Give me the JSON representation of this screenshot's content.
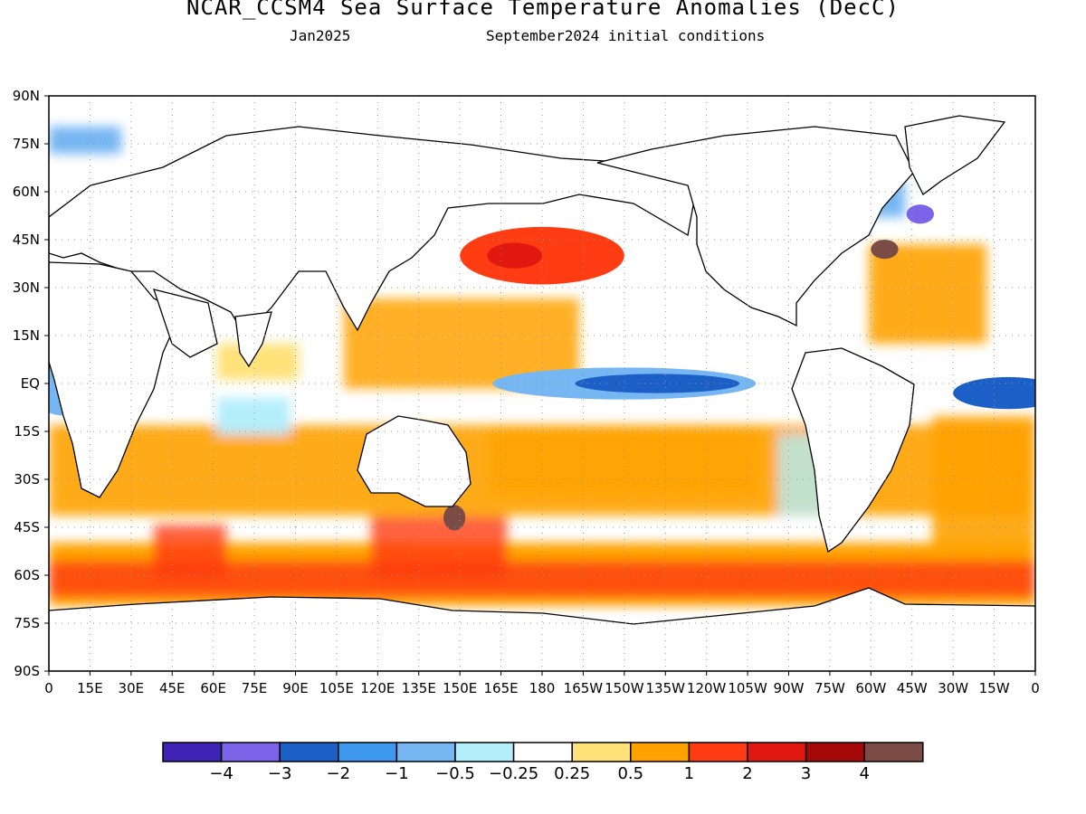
{
  "header": {
    "title": "NCAR_CCSM4 Sea Surface Temperature Anomalies (DecC)",
    "valid_month": "Jan2025",
    "init_conditions": "September2024 initial conditions"
  },
  "map": {
    "projection": "equirectangular",
    "lon_range": [
      0,
      360
    ],
    "lat_range": [
      -90,
      90
    ],
    "lat_labels": [
      "90N",
      "75N",
      "60N",
      "45N",
      "30N",
      "15N",
      "EQ",
      "15S",
      "30S",
      "45S",
      "60S",
      "75S",
      "90S"
    ],
    "lon_labels": [
      "0",
      "15E",
      "30E",
      "45E",
      "60E",
      "75E",
      "90E",
      "105E",
      "120E",
      "135E",
      "150E",
      "165E",
      "180",
      "165W",
      "150W",
      "135W",
      "120W",
      "105W",
      "90W",
      "75W",
      "60W",
      "45W",
      "30W",
      "15W",
      "0"
    ],
    "grid": true,
    "anomaly_regions": [
      {
        "lon": 210,
        "lat": 0,
        "rx": 48,
        "ry": 5,
        "level": -1
      },
      {
        "lon": 222,
        "lat": 0,
        "rx": 30,
        "ry": 3,
        "level": -2
      },
      {
        "lon": 180,
        "lat": 40,
        "rx": 30,
        "ry": 9,
        "level": 2
      },
      {
        "lon": 170,
        "lat": 40,
        "rx": 10,
        "ry": 4,
        "level": 3
      },
      {
        "lon": 148,
        "lat": -42,
        "rx": 4,
        "ry": 4,
        "level": 4
      },
      {
        "lon": 305,
        "lat": 42,
        "rx": 5,
        "ry": 3,
        "level": 4
      },
      {
        "lon": 318,
        "lat": 53,
        "rx": 5,
        "ry": 3,
        "level": -3
      },
      {
        "lon": 5,
        "lat": 0,
        "rx": 12,
        "ry": 10,
        "level": -1
      },
      {
        "lon": 350,
        "lat": -3,
        "rx": 20,
        "ry": 5,
        "level": -2
      }
    ]
  },
  "colorbar": {
    "colors": [
      "#3f23b5",
      "#7b64e8",
      "#1c5fc7",
      "#3d97ed",
      "#76b6f3",
      "#b4eefa",
      "#ffffff",
      "#ffe27a",
      "#ffa200",
      "#ff3c12",
      "#e01810",
      "#a40808",
      "#7a4c45"
    ],
    "labels": [
      "−4",
      "−3",
      "−2",
      "−1",
      "−0.5",
      "−0.25",
      "0.25",
      "0.5",
      "1",
      "2",
      "3",
      "4"
    ]
  }
}
